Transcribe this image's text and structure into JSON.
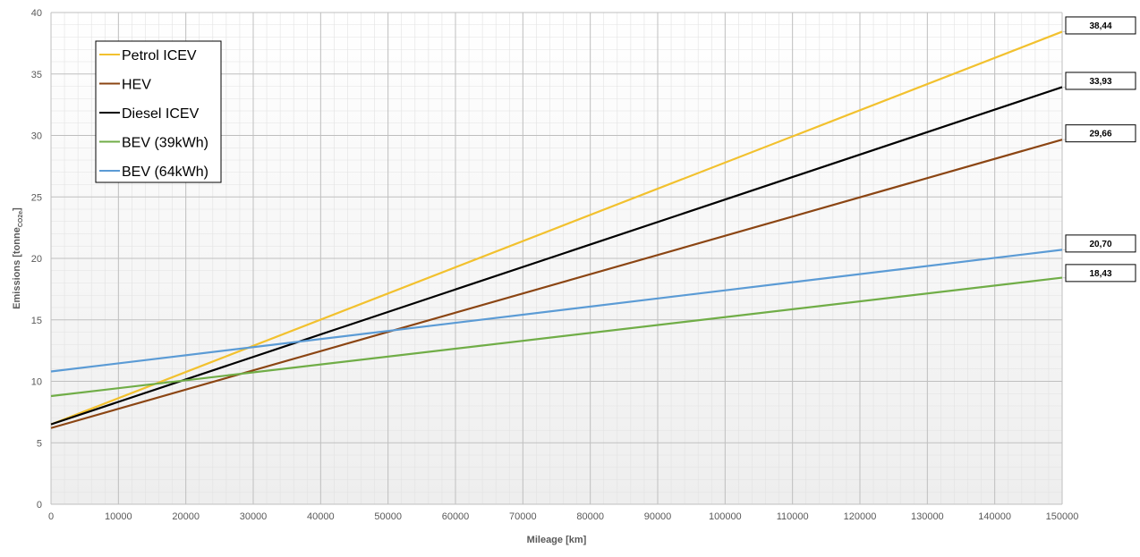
{
  "chart_data": {
    "type": "line",
    "xlabel": "Mileage [km]",
    "ylabel": {
      "main": "Emissions [tonne",
      "sub": "CO2e",
      "close": "]"
    },
    "xlim": [
      0,
      150000
    ],
    "ylim": [
      0,
      40
    ],
    "x_ticks": [
      "0",
      "10000",
      "20000",
      "30000",
      "40000",
      "50000",
      "60000",
      "70000",
      "80000",
      "90000",
      "100000",
      "110000",
      "120000",
      "130000",
      "140000",
      "150000"
    ],
    "y_ticks": [
      "0",
      "5",
      "10",
      "15",
      "20",
      "25",
      "30",
      "35",
      "40"
    ],
    "grid": true,
    "minor_grid": true,
    "legend_position": "top-left",
    "series": [
      {
        "name": "Petrol ICEV",
        "color": "#F2C12E",
        "x": [
          0,
          150000
        ],
        "y": [
          6.5,
          38.44
        ],
        "end_label": "38,44"
      },
      {
        "name": "HEV",
        "color": "#8B4513",
        "x": [
          0,
          150000
        ],
        "y": [
          6.2,
          29.66
        ],
        "end_label": "29,66"
      },
      {
        "name": "Diesel ICEV",
        "color": "#000000",
        "x": [
          0,
          150000
        ],
        "y": [
          6.5,
          33.93
        ],
        "end_label": "33,93"
      },
      {
        "name": "BEV (39kWh)",
        "color": "#70AD47",
        "x": [
          0,
          150000
        ],
        "y": [
          8.8,
          18.43
        ],
        "end_label": "18,43"
      },
      {
        "name": "BEV (64kWh)",
        "color": "#5B9BD5",
        "x": [
          0,
          150000
        ],
        "y": [
          10.8,
          20.7
        ],
        "end_label": "20,70"
      }
    ]
  }
}
